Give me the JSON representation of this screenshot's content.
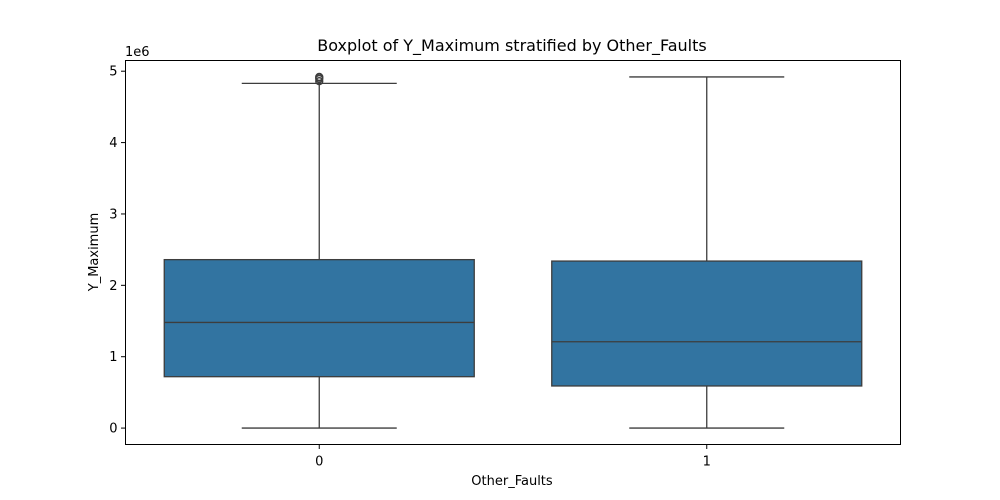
{
  "chart_data": {
    "type": "boxplot",
    "title": "Boxplot of Y_Maximum stratified by Other_Faults",
    "xlabel": "Other_Faults",
    "ylabel": "Y_Maximum",
    "y_offset_label": "1e6",
    "y_scale": 1000000,
    "ylim": [
      -230000,
      5150000
    ],
    "yticks": [
      0,
      1000000,
      2000000,
      3000000,
      4000000,
      5000000
    ],
    "ytick_labels": [
      "0",
      "1",
      "2",
      "3",
      "4",
      "5"
    ],
    "grid": false,
    "color": "#3274a1",
    "line_color": "#3d3d3d",
    "categories": [
      "0",
      "1"
    ],
    "boxes": [
      {
        "category": "0",
        "whisker_low": 0,
        "q1": 720000,
        "median": 1480000,
        "q3": 2360000,
        "whisker_high": 4830000,
        "outliers": [
          4860000,
          4890000,
          4910000,
          4920000
        ]
      },
      {
        "category": "1",
        "whisker_low": 0,
        "q1": 590000,
        "median": 1210000,
        "q3": 2340000,
        "whisker_high": 4920000,
        "outliers": []
      }
    ]
  }
}
